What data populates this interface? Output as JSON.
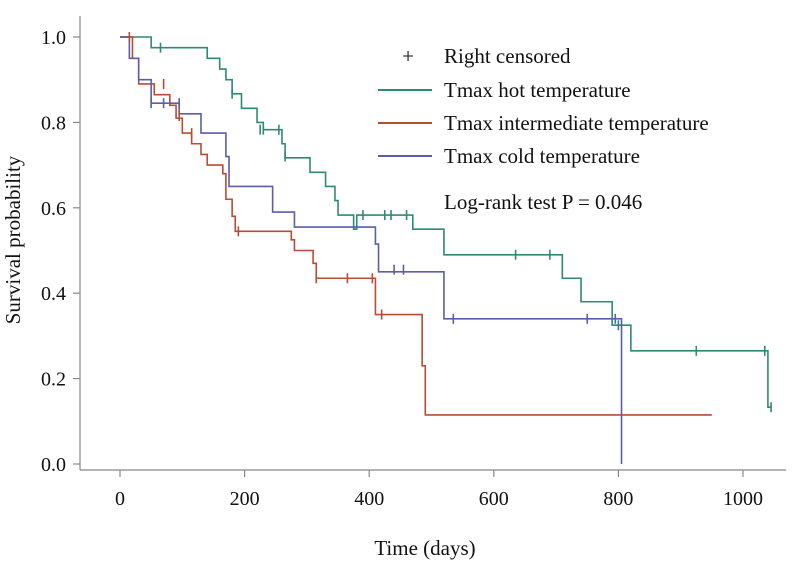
{
  "chart_data": {
    "type": "line",
    "subtype": "kaplan-meier step",
    "title": "",
    "xlabel": "Time (days)",
    "ylabel": "Survival probability",
    "xlim": [
      -30,
      1060
    ],
    "ylim": [
      -0.02,
      1.02
    ],
    "xticks": [
      0,
      200,
      400,
      600,
      800,
      1000
    ],
    "xtick_labels": [
      "0",
      "200",
      "400",
      "600",
      "800",
      "1000"
    ],
    "yticks": [
      0.0,
      0.2,
      0.4,
      0.6,
      0.8,
      1.0
    ],
    "ytick_labels": [
      "0.0",
      "0.2",
      "0.4",
      "0.6",
      "0.8",
      "1.0"
    ],
    "legend": {
      "position": "top-right",
      "censor_symbol": "+",
      "censor_label": "Right censored"
    },
    "annotation": "Log-rank test P = 0.046",
    "series": [
      {
        "name": "Tmax hot temperature",
        "color": "#2e8b73",
        "steps": [
          [
            0,
            1.0
          ],
          [
            50,
            0.975
          ],
          [
            140,
            0.95
          ],
          [
            160,
            0.925
          ],
          [
            170,
            0.9
          ],
          [
            180,
            0.867
          ],
          [
            195,
            0.833
          ],
          [
            220,
            0.8
          ],
          [
            230,
            0.783
          ],
          [
            260,
            0.75
          ],
          [
            265,
            0.717
          ],
          [
            305,
            0.683
          ],
          [
            330,
            0.65
          ],
          [
            345,
            0.617
          ],
          [
            350,
            0.583
          ],
          [
            375,
            0.55
          ],
          [
            380,
            0.583
          ],
          [
            470,
            0.55
          ],
          [
            520,
            0.49
          ],
          [
            710,
            0.435
          ],
          [
            740,
            0.38
          ],
          [
            790,
            0.325
          ],
          [
            820,
            0.265
          ],
          [
            1040,
            0.133
          ]
        ],
        "end_x": 1045,
        "censored": [
          [
            65,
            0.975
          ],
          [
            180,
            0.867
          ],
          [
            225,
            0.783
          ],
          [
            230,
            0.783
          ],
          [
            255,
            0.783
          ],
          [
            265,
            0.72
          ],
          [
            390,
            0.583
          ],
          [
            425,
            0.583
          ],
          [
            435,
            0.583
          ],
          [
            460,
            0.583
          ],
          [
            635,
            0.49
          ],
          [
            690,
            0.49
          ],
          [
            800,
            0.325
          ],
          [
            925,
            0.265
          ],
          [
            1035,
            0.265
          ],
          [
            1045,
            0.133
          ]
        ]
      },
      {
        "name": "Tmax intermediate temperature",
        "color": "#b84c34",
        "steps": [
          [
            0,
            1.0
          ],
          [
            20,
            0.95
          ],
          [
            30,
            0.89
          ],
          [
            55,
            0.865
          ],
          [
            80,
            0.84
          ],
          [
            90,
            0.81
          ],
          [
            100,
            0.775
          ],
          [
            115,
            0.75
          ],
          [
            130,
            0.725
          ],
          [
            140,
            0.7
          ],
          [
            165,
            0.68
          ],
          [
            170,
            0.62
          ],
          [
            180,
            0.58
          ],
          [
            185,
            0.545
          ],
          [
            275,
            0.525
          ],
          [
            280,
            0.5
          ],
          [
            310,
            0.47
          ],
          [
            315,
            0.435
          ],
          [
            410,
            0.35
          ],
          [
            485,
            0.23
          ],
          [
            490,
            0.115
          ]
        ],
        "end_x": 950,
        "censored": [
          [
            15,
            1.0
          ],
          [
            70,
            0.89
          ],
          [
            95,
            0.815
          ],
          [
            115,
            0.775
          ],
          [
            190,
            0.545
          ],
          [
            315,
            0.435
          ],
          [
            365,
            0.435
          ],
          [
            405,
            0.435
          ],
          [
            420,
            0.35
          ]
        ]
      },
      {
        "name": "Tmax cold temperature",
        "color": "#5a5fa8",
        "steps": [
          [
            0,
            1.0
          ],
          [
            15,
            0.95
          ],
          [
            30,
            0.9
          ],
          [
            50,
            0.845
          ],
          [
            95,
            0.82
          ],
          [
            130,
            0.775
          ],
          [
            170,
            0.72
          ],
          [
            175,
            0.65
          ],
          [
            245,
            0.59
          ],
          [
            280,
            0.555
          ],
          [
            410,
            0.515
          ],
          [
            415,
            0.45
          ],
          [
            520,
            0.34
          ],
          [
            805,
            0.0
          ]
        ],
        "end_x": 805,
        "censored": [
          [
            50,
            0.845
          ],
          [
            70,
            0.845
          ],
          [
            95,
            0.845
          ],
          [
            440,
            0.455
          ],
          [
            455,
            0.455
          ],
          [
            535,
            0.34
          ],
          [
            750,
            0.34
          ],
          [
            795,
            0.34
          ]
        ]
      }
    ]
  }
}
